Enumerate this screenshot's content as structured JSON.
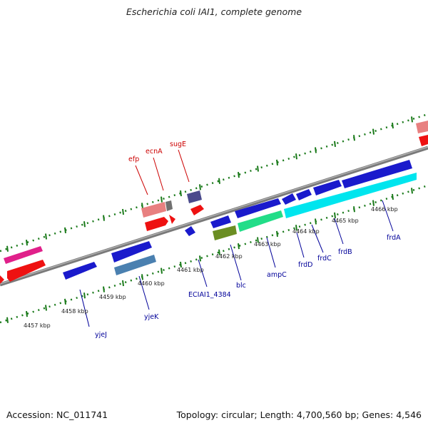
{
  "title": "Escherichia coli IAI1, complete genome",
  "footer": {
    "accession": "Accession: NC_011741",
    "summary": "Topology: circular; Length: 4,700,560 bp; Genes: 4,546"
  },
  "colors": {
    "backbone": "#888888",
    "ruler_ticks": "#1a7a1a",
    "forward_gene_label": "#cc0000",
    "reverse_gene_label": "#000099"
  },
  "ruler_labels": [
    "4457 kbp",
    "4458 kbp",
    "4459 kbp",
    "4460 kbp",
    "4461 kbp",
    "4462 kbp",
    "4463 kbp",
    "4464 kbp",
    "4465 kbp",
    "4466 kbp"
  ],
  "gene_labels": {
    "forward": [
      "efp",
      "ecnA",
      "sugE"
    ],
    "reverse": [
      "yjeJ",
      "yjeK",
      "ECIAI1_4384",
      "blc",
      "ampC",
      "frdD",
      "frdC",
      "frdB",
      "frdA"
    ]
  }
}
